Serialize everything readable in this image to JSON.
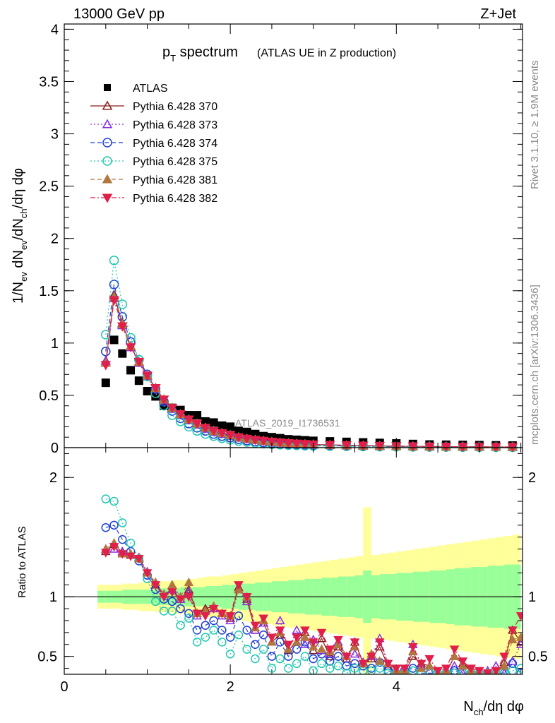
{
  "header": {
    "left": "13000 GeV pp",
    "right": "Z+Jet"
  },
  "side_labels": {
    "rivet": "Rivet 3.1.10, ≥ 1.9M events",
    "mcplots": "mcplots.cern.ch [arXiv:1306.3436]"
  },
  "chart_data": [
    {
      "panel": "main",
      "type": "scatter",
      "title_main": "p",
      "title_main_sub": "T",
      "title_main_rest": " spectrum",
      "title_suffix": "(ATLAS UE in Z production)",
      "analysis_label": "ATLAS_2019_I1736531",
      "ylabel": "1/N_ev dN_ev/dN_ch/dη dφ",
      "xlim": [
        0,
        5.52
      ],
      "ylim": [
        0,
        4.05
      ],
      "y_ticks": [
        0,
        0.5,
        1,
        1.5,
        2,
        2.5,
        3,
        3.5,
        4
      ],
      "y_tick_labels": [
        "0",
        "0.5",
        "1",
        "1.5",
        "2",
        "2.5",
        "3",
        "3.5",
        "4"
      ],
      "x_ticks": [
        0,
        2,
        4
      ],
      "legend_position": "top-left",
      "x": [
        0.5,
        0.6,
        0.7,
        0.8,
        0.9,
        1.0,
        1.1,
        1.2,
        1.3,
        1.4,
        1.5,
        1.6,
        1.7,
        1.8,
        1.9,
        2.0,
        2.1,
        2.2,
        2.3,
        2.4,
        2.5,
        2.6,
        2.7,
        2.8,
        2.9,
        3.0,
        3.2,
        3.4,
        3.6,
        3.8,
        4.0,
        4.2,
        4.4,
        4.6,
        4.8,
        5.0,
        5.2,
        5.4
      ],
      "series": [
        {
          "name": "ATLAS",
          "marker": "square",
          "color": "#000000",
          "values": [
            0.62,
            1.03,
            0.9,
            0.74,
            0.64,
            0.54,
            0.49,
            0.4,
            0.38,
            0.36,
            0.31,
            0.31,
            0.25,
            0.24,
            0.21,
            0.2,
            0.16,
            0.15,
            0.13,
            0.11,
            0.1,
            0.09,
            0.08,
            0.075,
            0.07,
            0.065,
            0.06,
            0.055,
            0.05,
            0.045,
            0.04,
            0.035,
            0.03,
            0.028,
            0.026,
            0.024,
            0.022,
            0.02
          ]
        },
        {
          "name": "Pythia 6.428 370",
          "marker": "triangle-up-open",
          "line": "solid",
          "color": "#8b1a1a",
          "values": [
            0.81,
            1.46,
            1.19,
            0.97,
            0.82,
            0.69,
            0.57,
            0.46,
            0.38,
            0.32,
            0.27,
            0.23,
            0.19,
            0.16,
            0.14,
            0.12,
            0.1,
            0.085,
            0.075,
            0.065,
            0.055,
            0.048,
            0.042,
            0.037,
            0.033,
            0.03,
            0.026,
            0.022,
            0.019,
            0.016,
            0.014,
            0.012,
            0.011,
            0.01,
            0.009,
            0.008,
            0.007,
            0.006
          ]
        },
        {
          "name": "Pythia 6.428 373",
          "marker": "triangle-up-open",
          "line": "dotted",
          "color": "#8a2be2",
          "values": [
            0.83,
            1.43,
            1.17,
            0.96,
            0.81,
            0.68,
            0.56,
            0.45,
            0.37,
            0.31,
            0.26,
            0.22,
            0.18,
            0.15,
            0.13,
            0.11,
            0.095,
            0.082,
            0.072,
            0.062,
            0.053,
            0.046,
            0.04,
            0.035,
            0.031,
            0.028,
            0.024,
            0.021,
            0.018,
            0.015,
            0.013,
            0.012,
            0.01,
            0.009,
            0.008,
            0.007,
            0.006,
            0.006
          ]
        },
        {
          "name": "Pythia 6.428 374",
          "marker": "circle-open",
          "line": "dashed",
          "color": "#1f3fd6",
          "values": [
            0.92,
            1.56,
            1.25,
            1.01,
            0.84,
            0.7,
            0.56,
            0.44,
            0.35,
            0.28,
            0.23,
            0.19,
            0.16,
            0.13,
            0.11,
            0.095,
            0.08,
            0.068,
            0.058,
            0.05,
            0.043,
            0.037,
            0.032,
            0.028,
            0.025,
            0.022,
            0.019,
            0.016,
            0.014,
            0.012,
            0.01,
            0.009,
            0.008,
            0.007,
            0.006,
            0.005,
            0.005,
            0.004
          ]
        },
        {
          "name": "Pythia 6.428 375",
          "marker": "circle-open",
          "line": "dotted",
          "color": "#20c8b0",
          "values": [
            1.08,
            1.79,
            1.37,
            1.05,
            0.84,
            0.68,
            0.52,
            0.4,
            0.31,
            0.25,
            0.2,
            0.16,
            0.13,
            0.11,
            0.09,
            0.075,
            0.063,
            0.053,
            0.045,
            0.038,
            0.032,
            0.028,
            0.024,
            0.021,
            0.018,
            0.016,
            0.014,
            0.012,
            0.01,
            0.009,
            0.008,
            0.007,
            0.006,
            0.005,
            0.004,
            0.004,
            0.003,
            0.003
          ]
        },
        {
          "name": "Pythia 6.428 381",
          "marker": "triangle-up-filled",
          "line": "dashed",
          "color": "#b07840",
          "values": [
            0.81,
            1.44,
            1.18,
            0.97,
            0.82,
            0.69,
            0.57,
            0.46,
            0.38,
            0.32,
            0.27,
            0.23,
            0.19,
            0.16,
            0.14,
            0.12,
            0.1,
            0.086,
            0.075,
            0.065,
            0.056,
            0.049,
            0.043,
            0.038,
            0.034,
            0.03,
            0.026,
            0.022,
            0.019,
            0.016,
            0.014,
            0.012,
            0.011,
            0.01,
            0.009,
            0.008,
            0.007,
            0.006
          ]
        },
        {
          "name": "Pythia 6.428 382",
          "marker": "triangle-down-filled",
          "line": "dashdot",
          "color": "#e0204a",
          "values": [
            0.79,
            1.41,
            1.16,
            0.96,
            0.82,
            0.69,
            0.57,
            0.46,
            0.38,
            0.32,
            0.27,
            0.23,
            0.19,
            0.16,
            0.14,
            0.12,
            0.1,
            0.086,
            0.075,
            0.066,
            0.057,
            0.05,
            0.044,
            0.039,
            0.035,
            0.031,
            0.027,
            0.023,
            0.02,
            0.017,
            0.015,
            0.013,
            0.011,
            0.01,
            0.009,
            0.008,
            0.007,
            0.007
          ]
        }
      ]
    },
    {
      "panel": "ratio",
      "type": "scatter",
      "ylabel": "Ratio to ATLAS",
      "xlabel": "N_ch/dη dφ",
      "xlim": [
        0,
        5.52
      ],
      "ylim": [
        0.35,
        2.25
      ],
      "y_ticks": [
        0.5,
        1,
        2
      ],
      "y_tick_labels": [
        "0.5",
        "1",
        "2"
      ],
      "x_ticks": [
        0,
        2,
        4
      ],
      "x_tick_labels": [
        "0",
        "2",
        "4"
      ],
      "reference_line": 1,
      "band_colors": {
        "inner": "#99ff99",
        "outer": "#ffff99"
      },
      "band_x": [
        0.45,
        0.55,
        0.65,
        0.75,
        0.85,
        0.95,
        1.05,
        1.15,
        1.25,
        1.35,
        1.45,
        1.55,
        1.65,
        1.75,
        1.85,
        1.95,
        2.05,
        2.15,
        2.25,
        2.35,
        2.45,
        2.55,
        2.65,
        2.75,
        2.85,
        2.95,
        3.05,
        3.15,
        3.25,
        3.35,
        3.45,
        3.55,
        3.65,
        3.75,
        3.85,
        3.95,
        4.05,
        4.15,
        4.25,
        4.35,
        4.45,
        4.55,
        4.65,
        4.75,
        4.85,
        4.95,
        5.05,
        5.15,
        5.25,
        5.35,
        5.45,
        5.55
      ],
      "band_inner_halfwidth": [
        0.05,
        0.05,
        0.05,
        0.06,
        0.06,
        0.06,
        0.06,
        0.07,
        0.07,
        0.07,
        0.08,
        0.08,
        0.08,
        0.09,
        0.09,
        0.1,
        0.1,
        0.11,
        0.11,
        0.12,
        0.12,
        0.13,
        0.13,
        0.14,
        0.14,
        0.15,
        0.15,
        0.16,
        0.16,
        0.17,
        0.17,
        0.18,
        0.22,
        0.18,
        0.19,
        0.19,
        0.2,
        0.2,
        0.21,
        0.21,
        0.22,
        0.22,
        0.23,
        0.24,
        0.24,
        0.25,
        0.25,
        0.26,
        0.26,
        0.27,
        0.27
      ],
      "band_outer_halfwidth": [
        0.1,
        0.1,
        0.1,
        0.11,
        0.11,
        0.12,
        0.12,
        0.13,
        0.13,
        0.14,
        0.14,
        0.15,
        0.16,
        0.17,
        0.17,
        0.18,
        0.19,
        0.2,
        0.21,
        0.22,
        0.23,
        0.24,
        0.25,
        0.26,
        0.27,
        0.28,
        0.29,
        0.3,
        0.31,
        0.32,
        0.33,
        0.34,
        0.75,
        0.35,
        0.36,
        0.37,
        0.38,
        0.39,
        0.4,
        0.41,
        0.42,
        0.43,
        0.44,
        0.45,
        0.46,
        0.47,
        0.48,
        0.49,
        0.5,
        0.51,
        0.52
      ],
      "x": [
        0.5,
        0.6,
        0.7,
        0.8,
        0.9,
        1.0,
        1.1,
        1.2,
        1.3,
        1.4,
        1.5,
        1.6,
        1.7,
        1.8,
        1.9,
        2.0,
        2.1,
        2.2,
        2.3,
        2.4,
        2.5,
        2.6,
        2.7,
        2.8,
        2.9,
        3.0,
        3.1,
        3.2,
        3.3,
        3.4,
        3.5,
        3.6,
        3.7,
        3.8,
        3.9,
        4.0,
        4.1,
        4.2,
        4.3,
        4.4,
        4.5,
        4.6,
        4.7,
        4.8,
        4.9,
        5.0,
        5.1,
        5.2,
        5.3,
        5.4,
        5.5
      ],
      "series": [
        {
          "name": "Pythia 6.428 370",
          "marker": "triangle-up-open",
          "line": "solid",
          "color": "#8b1a1a",
          "values": [
            1.38,
            1.44,
            1.37,
            1.35,
            1.32,
            1.2,
            1.1,
            1.02,
            1.06,
            0.98,
            1.06,
            0.86,
            0.9,
            0.92,
            0.86,
            0.82,
            1.08,
            0.98,
            0.72,
            0.78,
            0.62,
            0.68,
            0.55,
            0.62,
            0.7,
            0.55,
            0.65,
            0.5,
            0.58,
            0.48,
            0.62,
            0.45,
            0.48,
            0.58,
            0.42,
            0.36,
            0.36,
            0.5,
            0.44,
            0.42,
            0.36,
            0.36,
            0.5,
            0.44,
            0.38,
            0.36,
            0.36,
            0.36,
            0.45,
            0.72,
            0.62
          ]
        },
        {
          "name": "Pythia 6.428 373",
          "marker": "triangle-up-open",
          "line": "dotted",
          "color": "#8a2be2",
          "values": [
            1.4,
            1.4,
            1.38,
            1.36,
            1.33,
            1.21,
            1.12,
            1.02,
            1.06,
            0.98,
            1.04,
            0.84,
            0.88,
            0.9,
            0.84,
            0.8,
            1.06,
            0.96,
            0.72,
            0.78,
            0.62,
            0.8,
            0.56,
            0.72,
            0.6,
            0.64,
            0.55,
            0.52,
            0.62,
            0.5,
            0.52,
            0.45,
            0.5,
            0.65,
            0.44,
            0.38,
            0.38,
            0.6,
            0.42,
            0.38,
            0.36,
            0.36,
            0.42,
            0.36,
            0.36,
            0.36,
            0.38,
            0.42,
            0.36,
            0.46,
            0.6
          ]
        },
        {
          "name": "Pythia 6.428 374",
          "marker": "circle-open",
          "line": "dashed",
          "color": "#1f3fd6",
          "values": [
            1.58,
            1.6,
            1.48,
            1.38,
            1.3,
            1.18,
            1.06,
            0.98,
            0.96,
            0.9,
            0.86,
            0.72,
            0.76,
            0.8,
            0.72,
            0.66,
            0.84,
            0.72,
            0.6,
            0.68,
            0.5,
            0.62,
            0.5,
            0.56,
            0.62,
            0.48,
            0.52,
            0.46,
            0.5,
            0.42,
            0.44,
            0.42,
            0.4,
            0.45,
            0.38,
            0.36,
            0.38,
            0.4,
            0.36,
            0.36,
            0.36,
            0.36,
            0.38,
            0.36,
            0.36,
            0.36,
            0.36,
            0.36,
            0.36,
            0.44,
            0.36
          ]
        },
        {
          "name": "Pythia 6.428 375",
          "marker": "circle-open",
          "line": "dotted",
          "color": "#20c8b0",
          "values": [
            1.82,
            1.8,
            1.62,
            1.45,
            1.32,
            1.15,
            0.96,
            0.88,
            0.88,
            0.76,
            0.82,
            0.62,
            0.66,
            0.72,
            0.62,
            0.52,
            0.68,
            0.56,
            0.48,
            0.56,
            0.4,
            0.48,
            0.4,
            0.44,
            0.5,
            0.38,
            0.44,
            0.4,
            0.42,
            0.36,
            0.4,
            0.38,
            0.38,
            0.4,
            0.36,
            0.36,
            0.36,
            0.38,
            0.36,
            0.36,
            0.36,
            0.36,
            0.36,
            0.36,
            0.36,
            0.36,
            0.36,
            0.36,
            0.36,
            0.38,
            0.4
          ]
        },
        {
          "name": "Pythia 6.428 381",
          "marker": "triangle-up-filled",
          "line": "dashed",
          "color": "#b07840",
          "values": [
            1.4,
            1.45,
            1.36,
            1.36,
            1.32,
            1.2,
            1.12,
            1.02,
            1.1,
            1.0,
            1.12,
            0.86,
            0.88,
            0.92,
            0.86,
            0.84,
            1.06,
            1.0,
            0.74,
            0.8,
            0.62,
            0.7,
            0.56,
            0.62,
            0.66,
            0.58,
            0.56,
            0.54,
            0.6,
            0.5,
            0.58,
            0.44,
            0.52,
            0.46,
            0.44,
            0.38,
            0.38,
            0.54,
            0.4,
            0.42,
            0.36,
            0.38,
            0.5,
            0.42,
            0.38,
            0.36,
            0.36,
            0.36,
            0.42,
            0.64,
            0.66
          ]
        },
        {
          "name": "Pythia 6.428 382",
          "marker": "triangle-down-filled",
          "line": "dashdot",
          "color": "#e0204a",
          "values": [
            1.37,
            1.42,
            1.36,
            1.34,
            1.32,
            1.2,
            1.1,
            1.0,
            1.04,
            0.98,
            1.0,
            0.86,
            0.84,
            0.9,
            0.86,
            0.84,
            1.1,
            1.0,
            0.76,
            0.82,
            0.66,
            0.72,
            0.6,
            0.66,
            0.72,
            0.62,
            0.7,
            0.56,
            0.64,
            0.5,
            0.62,
            0.44,
            0.5,
            0.62,
            0.44,
            0.4,
            0.4,
            0.58,
            0.44,
            0.48,
            0.38,
            0.4,
            0.56,
            0.46,
            0.4,
            0.38,
            0.36,
            0.38,
            0.5,
            0.72,
            0.84
          ]
        }
      ]
    }
  ]
}
